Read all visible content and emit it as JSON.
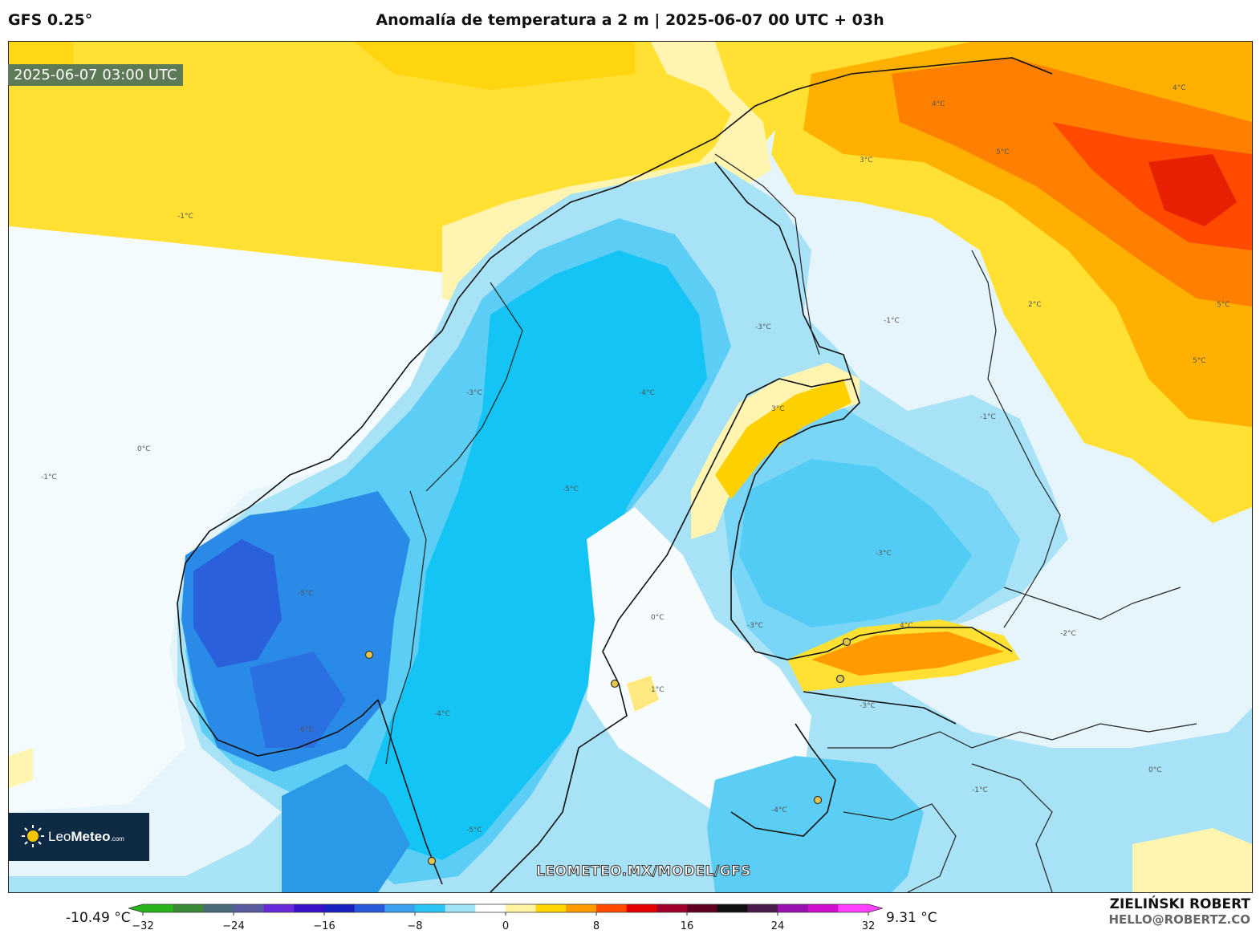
{
  "header": {
    "model": "GFS 0.25°",
    "title": "Anomalía de temperatura a 2 m | 2025-06-07 00 UTC + 03h"
  },
  "map": {
    "timestamp": "2025-06-07 03:00 UTC",
    "watermark": "LEOMETEO.MX/MODEL/GFS",
    "contour_labels": [
      "-1°C",
      "-2°C",
      "-3°C",
      "-4°C",
      "-5°C",
      "-6°C",
      "0°C",
      "1°C",
      "2°C",
      "3°C",
      "4°C",
      "5°C",
      "6°C",
      "8°C"
    ]
  },
  "logo": {
    "name_light": "Leo",
    "name_bold": "Meteo",
    "suffix": ".com"
  },
  "colorbar": {
    "min_label": "-10.49 °C",
    "max_label": "9.31 °C",
    "ticks": [
      "−32",
      "−24",
      "−16",
      "−8",
      "0",
      "8",
      "16",
      "24",
      "32"
    ],
    "range": [
      -32,
      32
    ],
    "colors": [
      "#27b51a",
      "#3a8a3a",
      "#4c6a7a",
      "#5a5aa0",
      "#6a2adc",
      "#3a10c8",
      "#1a20c0",
      "#2a5adc",
      "#3aa0f0",
      "#2ac4f4",
      "#9ee4f8",
      "#ffffff",
      "#fff2a0",
      "#ffd400",
      "#ff9a00",
      "#ff4a00",
      "#e40000",
      "#a0002a",
      "#600020",
      "#101010",
      "#4a1a4a",
      "#9a10b0",
      "#d010d0",
      "#ff40ff"
    ]
  },
  "credits": {
    "author": "ZIELIŃSKI ROBERT",
    "email": "HELLO@ROBERTZ.CO"
  },
  "colors": {
    "warm_yellow": "#ffe033",
    "warm_orange": "#ff9a00",
    "warm_red": "#ff4a00",
    "cool_blue": "#14c4f4",
    "deep_blue": "#2a6ae0",
    "light_blue": "#a8e2f6",
    "neutral": "#ffffff"
  }
}
